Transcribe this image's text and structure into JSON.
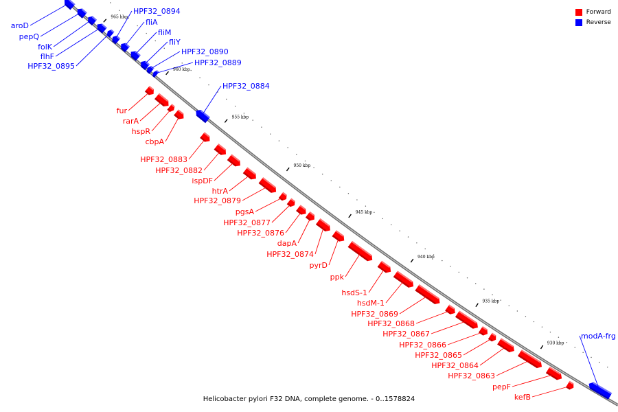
{
  "caption": "Helicobacter pylori F32 DNA, complete genome. - 0..1578824",
  "legend": [
    {
      "label": "Forward",
      "color": "#ff0000"
    },
    {
      "label": "Reverse",
      "color": "#0000ff"
    }
  ],
  "colors": {
    "forward": "#ff0000",
    "reverse": "#0000ff",
    "backbone": "#7a7a7a"
  },
  "ticks": [
    {
      "label": "965 kbp"
    },
    {
      "label": "960 kbp"
    },
    {
      "label": "955 kbp"
    },
    {
      "label": "950 kbp"
    },
    {
      "label": "945 kbp"
    },
    {
      "label": "940 kbp"
    },
    {
      "label": "935 kbp"
    },
    {
      "label": "930 kbp"
    }
  ],
  "genes": [
    {
      "name": "aroD",
      "strand": "reverse"
    },
    {
      "name": "pepQ",
      "strand": "reverse"
    },
    {
      "name": "folK",
      "strand": "reverse"
    },
    {
      "name": "flhF",
      "strand": "reverse"
    },
    {
      "name": "HPF32_0895",
      "strand": "reverse"
    },
    {
      "name": "HPF32_0894",
      "strand": "reverse"
    },
    {
      "name": "fliA",
      "strand": "reverse"
    },
    {
      "name": "fliM",
      "strand": "reverse"
    },
    {
      "name": "fliY",
      "strand": "reverse"
    },
    {
      "name": "HPF32_0890",
      "strand": "reverse"
    },
    {
      "name": "HPF32_0889",
      "strand": "reverse"
    },
    {
      "name": "HPF32_0884",
      "strand": "reverse"
    },
    {
      "name": "fur",
      "strand": "forward"
    },
    {
      "name": "rarA",
      "strand": "forward"
    },
    {
      "name": "hspR",
      "strand": "forward"
    },
    {
      "name": "cbpA",
      "strand": "forward"
    },
    {
      "name": "HPF32_0883",
      "strand": "forward"
    },
    {
      "name": "HPF32_0882",
      "strand": "forward"
    },
    {
      "name": "ispDF",
      "strand": "forward"
    },
    {
      "name": "htrA",
      "strand": "forward"
    },
    {
      "name": "HPF32_0879",
      "strand": "forward"
    },
    {
      "name": "pgsA",
      "strand": "forward"
    },
    {
      "name": "HPF32_0877",
      "strand": "forward"
    },
    {
      "name": "HPF32_0876",
      "strand": "forward"
    },
    {
      "name": "dapA",
      "strand": "forward"
    },
    {
      "name": "HPF32_0874",
      "strand": "forward"
    },
    {
      "name": "pyrD",
      "strand": "forward"
    },
    {
      "name": "ppk",
      "strand": "forward"
    },
    {
      "name": "hsdS-1",
      "strand": "forward"
    },
    {
      "name": "hsdM-1",
      "strand": "forward"
    },
    {
      "name": "HPF32_0869",
      "strand": "forward"
    },
    {
      "name": "HPF32_0868",
      "strand": "forward"
    },
    {
      "name": "HPF32_0867",
      "strand": "forward"
    },
    {
      "name": "HPF32_0866",
      "strand": "forward"
    },
    {
      "name": "HPF32_0865",
      "strand": "forward"
    },
    {
      "name": "HPF32_0864",
      "strand": "forward"
    },
    {
      "name": "HPF32_0863",
      "strand": "forward"
    },
    {
      "name": "pepF",
      "strand": "forward"
    },
    {
      "name": "kefB",
      "strand": "forward"
    },
    {
      "name": "modA-frg",
      "strand": "reverse"
    }
  ]
}
